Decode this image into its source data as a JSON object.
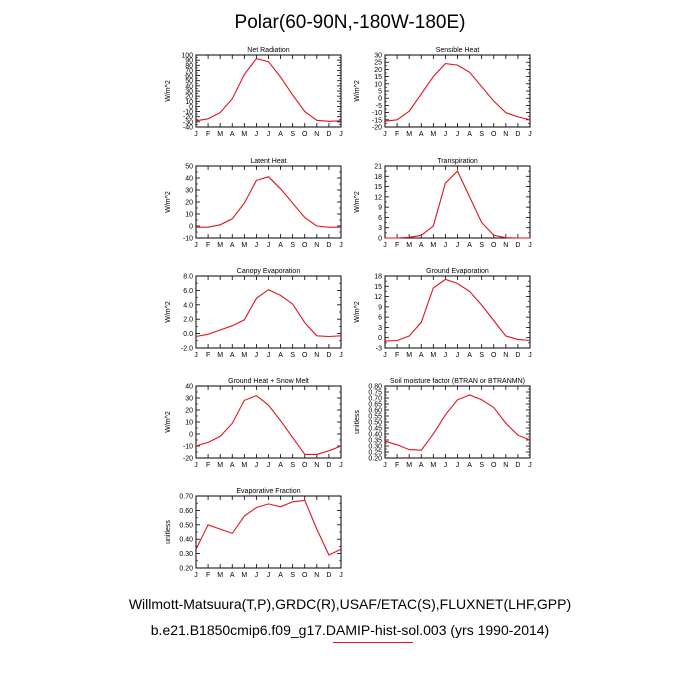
{
  "page": {
    "title": "Polar(60-90N,-180W-180E)",
    "caption1": "Willmott-Matsuura(T,P),GRDC(R),USAF/ETAC(S),FLUXNET(LHF,GPP)",
    "caption2": "b.e21.B1850cmip6.f09_g17.DAMIP-hist-sol.003 (yrs 1990-2014)"
  },
  "colors": {
    "series": "#e0141e",
    "axis": "#000000"
  },
  "chart_data": [
    {
      "type": "line",
      "title": "Net Radiation",
      "ylabel": "W/m^2",
      "x": [
        "J",
        "F",
        "M",
        "A",
        "M",
        "J",
        "J",
        "A",
        "S",
        "O",
        "N",
        "D",
        "J"
      ],
      "ylim": [
        -40,
        100
      ],
      "yticks": [
        "100",
        "90",
        "80",
        "70",
        "60",
        "50",
        "40",
        "30",
        "20",
        "10",
        "0",
        "-10",
        "-20",
        "-30",
        "-40"
      ],
      "values": [
        -28,
        -24,
        -12,
        15,
        62,
        93,
        87,
        57,
        22,
        -10,
        -27,
        -29,
        -28
      ]
    },
    {
      "type": "line",
      "title": "Sensible Heat",
      "ylabel": "W/m^2",
      "x": [
        "J",
        "F",
        "M",
        "A",
        "M",
        "J",
        "J",
        "A",
        "S",
        "O",
        "N",
        "D",
        "J"
      ],
      "ylim": [
        -20,
        30
      ],
      "yticks": [
        "30",
        "25",
        "20",
        "15",
        "10",
        "5",
        "0",
        "-5",
        "-10",
        "-15",
        "-20"
      ],
      "values": [
        -16,
        -15,
        -9,
        3,
        15,
        24,
        23,
        18,
        8,
        -2,
        -10,
        -13,
        -15
      ]
    },
    {
      "type": "line",
      "title": "Latent Heat",
      "ylabel": "W/m^2",
      "x": [
        "J",
        "F",
        "M",
        "A",
        "M",
        "J",
        "J",
        "A",
        "S",
        "O",
        "N",
        "D",
        "J"
      ],
      "ylim": [
        -10,
        50
      ],
      "yticks": [
        "50",
        "40",
        "30",
        "20",
        "10",
        "0",
        "-10"
      ],
      "values": [
        -1,
        -1,
        1,
        6,
        19,
        38,
        41,
        31,
        19,
        7,
        0,
        -1,
        -1
      ]
    },
    {
      "type": "line",
      "title": "Transpiration",
      "ylabel": "W/m^2",
      "x": [
        "J",
        "F",
        "M",
        "A",
        "M",
        "J",
        "J",
        "A",
        "S",
        "O",
        "N",
        "D",
        "J"
      ],
      "ylim": [
        0,
        21
      ],
      "yticks": [
        "21",
        "18",
        "15",
        "12",
        "9",
        "6",
        "3",
        "0"
      ],
      "values": [
        0,
        0,
        0.2,
        0.8,
        3.5,
        16,
        19.5,
        12,
        4.5,
        0.8,
        0.1,
        0,
        0
      ]
    },
    {
      "type": "line",
      "title": "Canopy Evaporation",
      "ylabel": "W/m^2",
      "x": [
        "J",
        "F",
        "M",
        "A",
        "M",
        "J",
        "J",
        "A",
        "S",
        "O",
        "N",
        "D",
        "J"
      ],
      "ylim": [
        -2,
        8
      ],
      "yticks": [
        "8.0",
        "6.0",
        "4.0",
        "2.0",
        "0.0",
        "-2.0"
      ],
      "values": [
        -0.4,
        -0.1,
        0.5,
        1.1,
        1.9,
        4.9,
        6.1,
        5.3,
        4.1,
        1.5,
        -0.3,
        -0.4,
        -0.3
      ]
    },
    {
      "type": "line",
      "title": "Ground Evaporation",
      "ylabel": "W/m^2",
      "x": [
        "J",
        "F",
        "M",
        "A",
        "M",
        "J",
        "J",
        "A",
        "S",
        "O",
        "N",
        "D",
        "J"
      ],
      "ylim": [
        -3,
        18
      ],
      "yticks": [
        "18",
        "15",
        "12",
        "9",
        "6",
        "3",
        "0",
        "-3"
      ],
      "values": [
        -1,
        -0.8,
        0.5,
        4.5,
        14.5,
        17,
        15.8,
        13.5,
        9.5,
        5,
        0.5,
        -0.5,
        -0.8
      ]
    },
    {
      "type": "line",
      "title": "Ground Heat + Snow Melt",
      "ylabel": "W/m^2",
      "x": [
        "J",
        "F",
        "M",
        "A",
        "M",
        "J",
        "J",
        "A",
        "S",
        "O",
        "N",
        "D",
        "J"
      ],
      "ylim": [
        -20,
        40
      ],
      "yticks": [
        "40",
        "30",
        "20",
        "10",
        "0",
        "-10",
        "-20"
      ],
      "values": [
        -10,
        -7,
        -2,
        9,
        28,
        32,
        24,
        11,
        -3,
        -17,
        -17,
        -14,
        -10
      ]
    },
    {
      "type": "line",
      "title": "Soil moisture factor (BTRAN or BTRANMN)",
      "ylabel": "unitless",
      "x": [
        "J",
        "F",
        "M",
        "A",
        "M",
        "J",
        "J",
        "A",
        "S",
        "O",
        "N",
        "D",
        "J"
      ],
      "ylim": [
        0.2,
        0.8
      ],
      "yticks": [
        "0.80",
        "0.75",
        "0.70",
        "0.65",
        "0.60",
        "0.55",
        "0.50",
        "0.45",
        "0.40",
        "0.35",
        "0.30",
        "0.25",
        "0.20"
      ],
      "values": [
        0.34,
        0.31,
        0.27,
        0.265,
        0.4,
        0.56,
        0.685,
        0.725,
        0.685,
        0.62,
        0.49,
        0.39,
        0.35
      ]
    },
    {
      "type": "line",
      "title": "Evaporative Fraction",
      "ylabel": "unitless",
      "x": [
        "J",
        "F",
        "M",
        "A",
        "M",
        "J",
        "J",
        "A",
        "S",
        "O",
        "N",
        "D",
        "J"
      ],
      "ylim": [
        0.2,
        0.7
      ],
      "yticks": [
        "0.70",
        "0.60",
        "0.50",
        "0.40",
        "0.30",
        "0.20"
      ],
      "values": [
        0.33,
        0.5,
        0.47,
        0.44,
        0.56,
        0.62,
        0.645,
        0.625,
        0.66,
        0.67,
        0.47,
        0.29,
        0.33
      ]
    }
  ]
}
